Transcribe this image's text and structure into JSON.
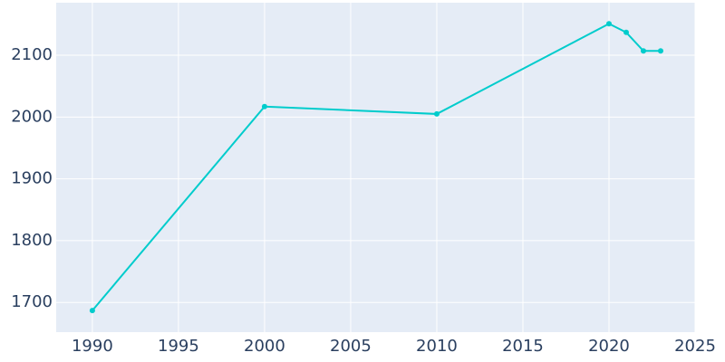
{
  "chart_data": {
    "type": "line",
    "x": [
      1990,
      2000,
      2010,
      2020,
      2021,
      2022,
      2023
    ],
    "series": [
      {
        "color": "#00cccc",
        "values": [
          1687,
          2017,
          2005,
          2151,
          2137,
          2107,
          2107
        ]
      }
    ],
    "xlim": [
      1987.9,
      2025
    ],
    "xticks": [
      1990,
      1995,
      2000,
      2005,
      2010,
      2015,
      2020,
      2025
    ],
    "ylim": [
      1652,
      2185
    ],
    "yticks": [
      1700,
      1800,
      1900,
      2000,
      2100
    ],
    "grid": true
  }
}
